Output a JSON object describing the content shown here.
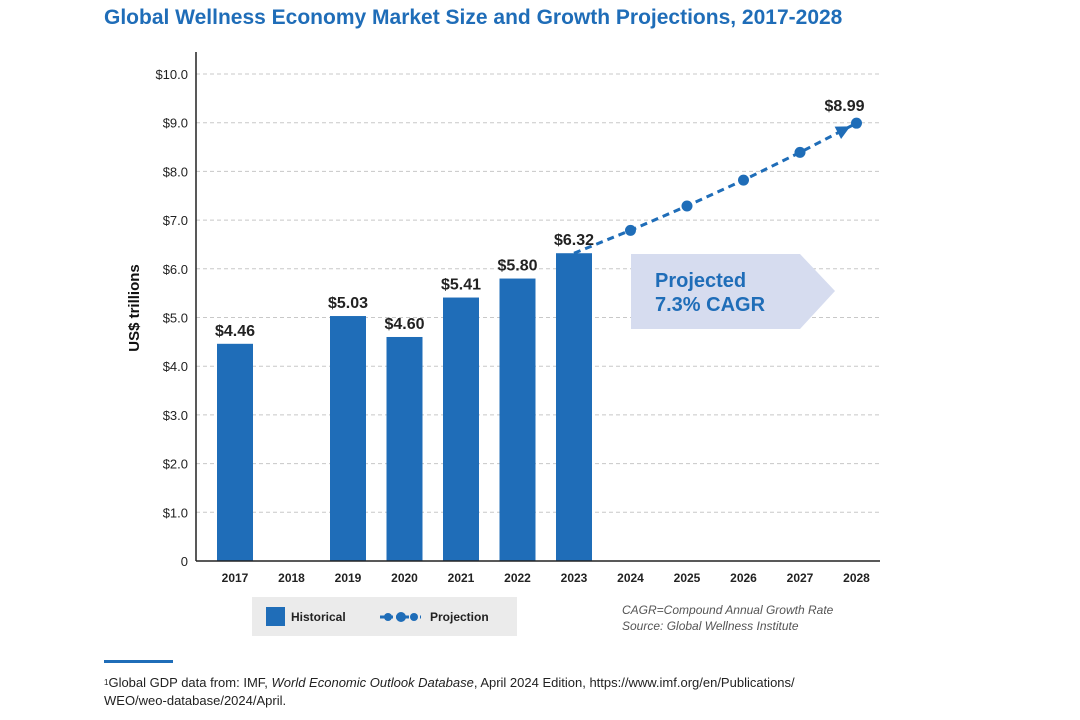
{
  "chart_data": {
    "type": "bar",
    "title": "Global Wellness Economy Market Size and Growth Projections, 2017-2028",
    "ylabel": "US$ trillions",
    "xlabel": "",
    "ylim": [
      0,
      10
    ],
    "grid": true,
    "yticks": [
      "0",
      "$1.0",
      "$2.0",
      "$3.0",
      "$4.0",
      "$5.0",
      "$6.0",
      "$7.0",
      "$8.0",
      "$9.0",
      "$10.0"
    ],
    "categories": [
      "2017",
      "2018",
      "2019",
      "2020",
      "2021",
      "2022",
      "2023",
      "2024",
      "2025",
      "2026",
      "2027",
      "2028"
    ],
    "series": [
      {
        "name": "Historical",
        "type": "bar",
        "color": "#1f6db8",
        "values": [
          4.46,
          null,
          5.03,
          4.6,
          5.41,
          5.8,
          6.32,
          null,
          null,
          null,
          null,
          null
        ],
        "labels": [
          "$4.46",
          "",
          "$5.03",
          "$4.60",
          "$5.41",
          "$5.80",
          "$6.32",
          "",
          "",
          "",
          "",
          ""
        ]
      },
      {
        "name": "Projection",
        "type": "line",
        "style": "dashed-with-markers",
        "color": "#1f6db8",
        "values": [
          null,
          null,
          null,
          null,
          null,
          null,
          6.32,
          6.79,
          7.29,
          7.82,
          8.39,
          8.99
        ],
        "labels": [
          "",
          "",
          "",
          "",
          "",
          "",
          "",
          "",
          "",
          "",
          "",
          "$8.99"
        ]
      }
    ],
    "annotation": {
      "line1": "Projected",
      "line2": "7.3% CAGR"
    },
    "legend_position": "bottom-left",
    "notes": {
      "line1": "CAGR=Compound Annual Growth Rate",
      "line2": "Source: Global Wellness Institute"
    }
  },
  "footnote": {
    "marker": "1",
    "prefix": "Global GDP data from: IMF, ",
    "italic": "World Economic Outlook Database",
    "suffix": ", April 2024 Edition, https://www.imf.org/en/Publications/",
    "line2": "WEO/weo-database/2024/April."
  }
}
